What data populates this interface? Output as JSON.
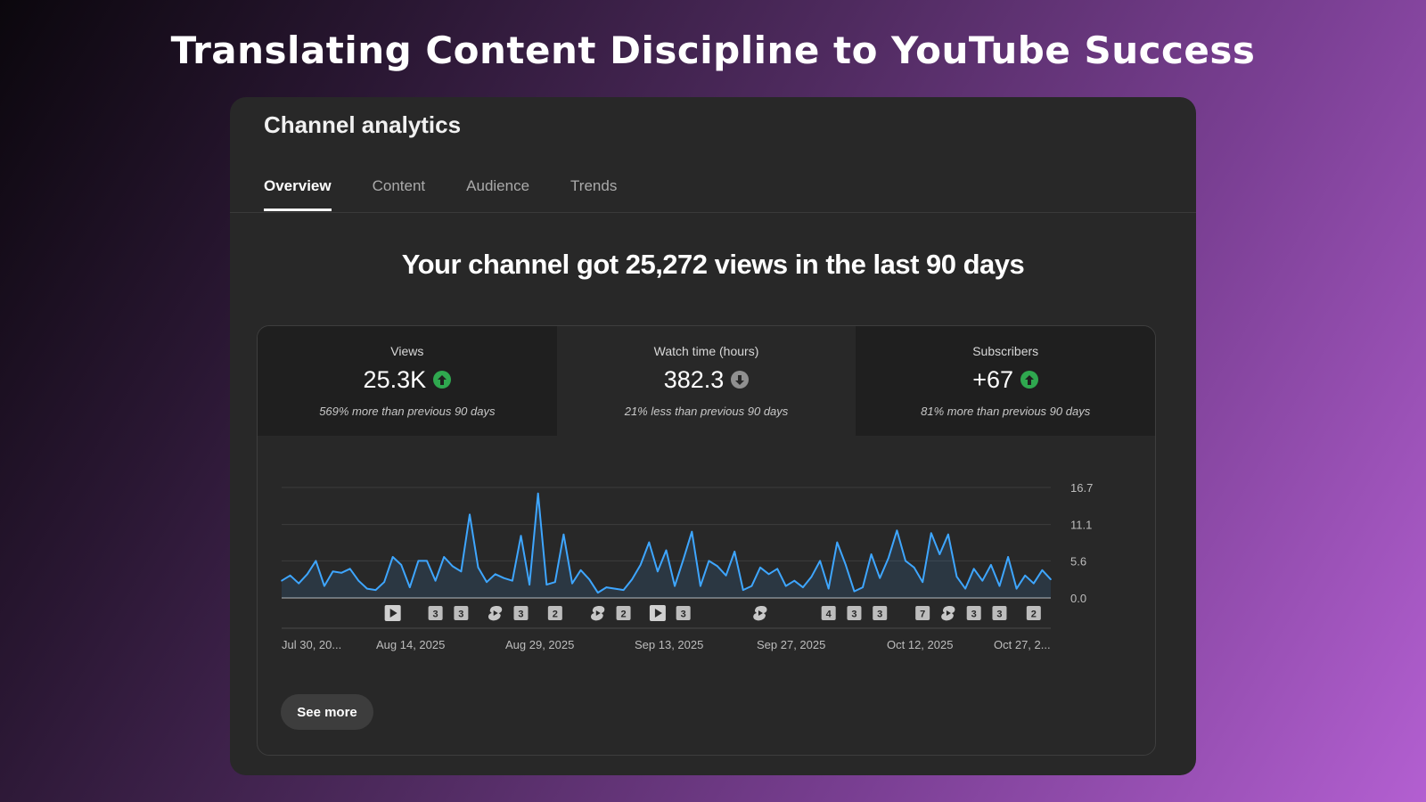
{
  "slide": {
    "title": "Translating Content Discipline to YouTube Success"
  },
  "panel": {
    "title": "Channel analytics",
    "tabs": [
      "Overview",
      "Content",
      "Audience",
      "Trends"
    ],
    "active_tab": "Overview",
    "headline": "Your channel got 25,272 views in the last 90 days",
    "see_more": "See more"
  },
  "metrics": [
    {
      "label": "Views",
      "value": "25.3K",
      "trend": "up",
      "note": "569% more than previous 90 days"
    },
    {
      "label": "Watch time (hours)",
      "value": "382.3",
      "trend": "down",
      "note": "21% less than previous 90 days"
    },
    {
      "label": "Subscribers",
      "value": "+67",
      "trend": "up",
      "note": "81% more than previous 90 days"
    }
  ],
  "colors": {
    "line": "#3ea6ff",
    "up": "#2fa84f",
    "down": "#909090"
  },
  "chart_data": {
    "type": "area",
    "y_ticks": [
      "16.7",
      "11.1",
      "5.6",
      "0.0"
    ],
    "ylim": [
      0,
      16.7
    ],
    "x_ticks": [
      "Jul 30, 20...",
      "Aug 14, 2025",
      "Aug 29, 2025",
      "Sep 13, 2025",
      "Sep 27, 2025",
      "Oct 12, 2025",
      "Oct 27, 2..."
    ],
    "values": [
      2.6,
      3.4,
      2.2,
      3.6,
      5.6,
      1.8,
      4.0,
      3.8,
      4.4,
      2.6,
      1.4,
      1.2,
      2.4,
      6.2,
      5.0,
      1.6,
      5.6,
      5.6,
      2.6,
      6.2,
      4.8,
      4.0,
      12.6,
      4.6,
      2.4,
      3.6,
      3.0,
      2.6,
      9.4,
      2.0,
      15.8,
      2.0,
      2.4,
      9.6,
      2.2,
      4.2,
      2.8,
      0.8,
      1.6,
      1.4,
      1.2,
      2.8,
      5.0,
      8.4,
      4.0,
      7.2,
      1.8,
      5.8,
      10.0,
      1.8,
      5.6,
      4.8,
      3.4,
      7.0,
      1.2,
      1.8,
      4.6,
      3.6,
      4.4,
      1.8,
      2.6,
      1.6,
      3.2,
      5.6,
      1.4,
      8.4,
      5.0,
      1.0,
      1.6,
      6.6,
      3.0,
      6.0,
      10.2,
      5.6,
      4.6,
      2.4,
      9.8,
      6.6,
      9.6,
      3.2,
      1.4,
      4.4,
      2.6,
      5.0,
      1.8,
      6.2,
      1.4,
      3.4,
      2.2,
      4.2,
      2.8
    ],
    "markers": [
      {
        "type": "video",
        "index": 13
      },
      {
        "type": "count",
        "label": "3",
        "index": 18
      },
      {
        "type": "count",
        "label": "3",
        "index": 21
      },
      {
        "type": "short",
        "index": 25
      },
      {
        "type": "count",
        "label": "3",
        "index": 28
      },
      {
        "type": "count",
        "label": "2",
        "index": 32
      },
      {
        "type": "short",
        "index": 37
      },
      {
        "type": "count",
        "label": "2",
        "index": 40
      },
      {
        "type": "video",
        "index": 44
      },
      {
        "type": "count",
        "label": "3",
        "index": 47
      },
      {
        "type": "short",
        "index": 56
      },
      {
        "type": "count",
        "label": "4",
        "index": 64
      },
      {
        "type": "count",
        "label": "3",
        "index": 67
      },
      {
        "type": "count",
        "label": "3",
        "index": 70
      },
      {
        "type": "count",
        "label": "7",
        "index": 75
      },
      {
        "type": "short",
        "index": 78
      },
      {
        "type": "count",
        "label": "3",
        "index": 81
      },
      {
        "type": "count",
        "label": "3",
        "index": 84
      },
      {
        "type": "count",
        "label": "2",
        "index": 88
      }
    ]
  }
}
